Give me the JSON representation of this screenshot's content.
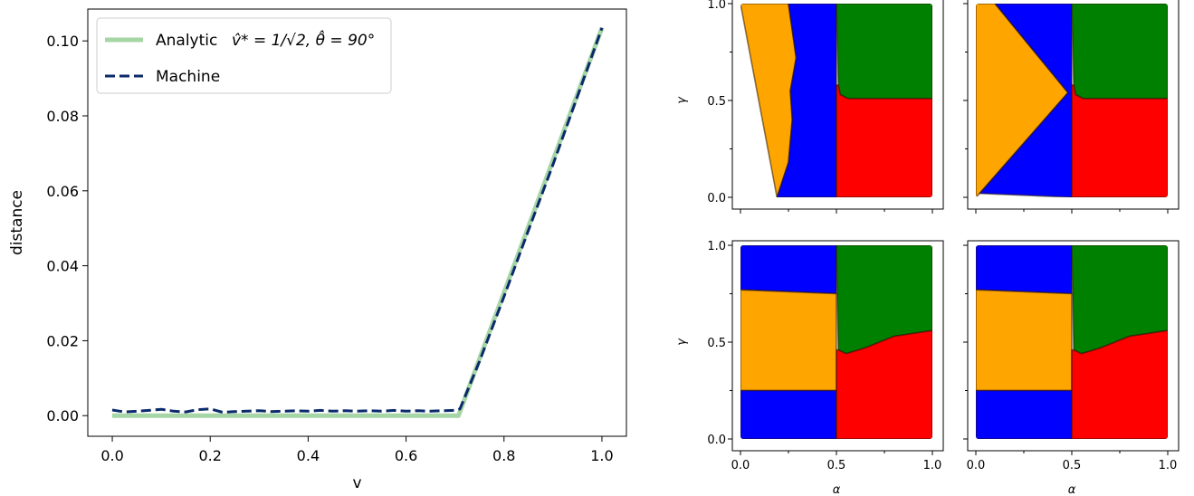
{
  "chart_data": [
    {
      "type": "line",
      "title": "",
      "xlabel": "v",
      "ylabel": "distance",
      "xlim": [
        -0.05,
        1.05
      ],
      "ylim": [
        -0.0055,
        0.1085
      ],
      "xticks": [
        0.0,
        0.2,
        0.4,
        0.6,
        0.8,
        1.0
      ],
      "xtick_labels": [
        "0.0",
        "0.2",
        "0.4",
        "0.6",
        "0.8",
        "1.0"
      ],
      "yticks": [
        0.0,
        0.02,
        0.04,
        0.06,
        0.08,
        0.1
      ],
      "ytick_labels": [
        "0.00",
        "0.02",
        "0.04",
        "0.06",
        "0.08",
        "0.10"
      ],
      "grid": false,
      "legend": "upper-left",
      "series": [
        {
          "name": "Analytic",
          "name_math": "v̂* = 1/√2, θ̂ = 90°",
          "color": "#a6d5a6",
          "style": "solid",
          "x": [
            0.0,
            0.707,
            1.0
          ],
          "y": [
            0.0,
            0.0,
            0.1035
          ]
        },
        {
          "name": "Machine",
          "color": "#0b2a6b",
          "style": "dashed",
          "x": [
            0.0,
            0.025,
            0.05,
            0.075,
            0.1,
            0.125,
            0.15,
            0.175,
            0.2,
            0.225,
            0.25,
            0.275,
            0.3,
            0.325,
            0.35,
            0.375,
            0.4,
            0.425,
            0.45,
            0.475,
            0.5,
            0.525,
            0.55,
            0.575,
            0.6,
            0.625,
            0.65,
            0.675,
            0.7,
            0.71,
            0.75,
            0.8,
            0.85,
            0.9,
            0.95,
            1.0
          ],
          "y": [
            0.0015,
            0.001,
            0.0012,
            0.0014,
            0.0017,
            0.0012,
            0.001,
            0.0016,
            0.0018,
            0.0009,
            0.0011,
            0.0012,
            0.0013,
            0.0011,
            0.0012,
            0.0013,
            0.0012,
            0.0014,
            0.0012,
            0.0013,
            0.0012,
            0.0013,
            0.0012,
            0.0014,
            0.0012,
            0.0013,
            0.0012,
            0.0013,
            0.0014,
            0.0018,
            0.0145,
            0.0318,
            0.0495,
            0.067,
            0.0852,
            0.1035
          ]
        }
      ]
    },
    {
      "type": "scatter",
      "xlabel": "",
      "ylabel": "γ",
      "xlim": [
        0,
        1
      ],
      "ylim": [
        0,
        1
      ],
      "yticks_labels": [
        "0.0",
        "0.5",
        "1.0"
      ],
      "regions": [
        {
          "color": "#ffa500",
          "polygon": [
            [
              0,
              1
            ],
            [
              0.25,
              1
            ],
            [
              0.29,
              0.72
            ],
            [
              0.26,
              0.55
            ],
            [
              0.27,
              0.4
            ],
            [
              0.25,
              0.18
            ],
            [
              0.19,
              0
            ]
          ]
        },
        {
          "color": "#0000ff",
          "polygon": [
            [
              0.25,
              1
            ],
            [
              0.5,
              1
            ],
            [
              0.5,
              0
            ],
            [
              0.19,
              0
            ],
            [
              0.25,
              0.18
            ],
            [
              0.27,
              0.4
            ],
            [
              0.26,
              0.55
            ],
            [
              0.29,
              0.72
            ]
          ]
        },
        {
          "color": "#008000",
          "polygon": [
            [
              0.5,
              1
            ],
            [
              1,
              1
            ],
            [
              1,
              0.51
            ],
            [
              0.56,
              0.51
            ],
            [
              0.52,
              0.53
            ],
            [
              0.51,
              0.58
            ]
          ]
        },
        {
          "color": "#ff0000",
          "polygon": [
            [
              0.5,
              0
            ],
            [
              1,
              0
            ],
            [
              1,
              0.51
            ],
            [
              0.56,
              0.51
            ],
            [
              0.52,
              0.53
            ],
            [
              0.51,
              0.58
            ],
            [
              0.5,
              0.58
            ]
          ]
        }
      ]
    },
    {
      "type": "scatter",
      "xlim": [
        0,
        1
      ],
      "ylim": [
        0,
        1
      ],
      "regions": [
        {
          "color": "#ffa500",
          "polygon": [
            [
              0,
              1
            ],
            [
              0.1,
              1
            ],
            [
              0.48,
              0.54
            ],
            [
              0.02,
              0.02
            ],
            [
              0,
              0
            ]
          ]
        },
        {
          "color": "#0000ff",
          "polygon": [
            [
              0.1,
              1
            ],
            [
              0.5,
              1
            ],
            [
              0.5,
              0
            ],
            [
              0.02,
              0.02
            ],
            [
              0.48,
              0.54
            ]
          ]
        },
        {
          "color": "#008000",
          "polygon": [
            [
              0.5,
              1
            ],
            [
              1,
              1
            ],
            [
              1,
              0.51
            ],
            [
              0.56,
              0.51
            ],
            [
              0.52,
              0.53
            ],
            [
              0.51,
              0.58
            ]
          ]
        },
        {
          "color": "#ff0000",
          "polygon": [
            [
              0.5,
              0
            ],
            [
              1,
              0
            ],
            [
              1,
              0.51
            ],
            [
              0.56,
              0.51
            ],
            [
              0.52,
              0.53
            ],
            [
              0.51,
              0.58
            ],
            [
              0.5,
              0.58
            ]
          ]
        }
      ]
    },
    {
      "type": "scatter",
      "xlabel": "α",
      "ylabel": "γ",
      "xlim": [
        0,
        1
      ],
      "ylim": [
        0,
        1
      ],
      "xticks_labels": [
        "0.0",
        "0.5",
        "1.0"
      ],
      "yticks_labels": [
        "0.0",
        "0.5",
        "1.0"
      ],
      "regions": [
        {
          "color": "#0000ff",
          "polygon": [
            [
              0,
              1
            ],
            [
              0.5,
              1
            ],
            [
              0.5,
              0.75
            ],
            [
              0,
              0.77
            ]
          ]
        },
        {
          "color": "#ffa500",
          "polygon": [
            [
              0,
              0.77
            ],
            [
              0.5,
              0.75
            ],
            [
              0.5,
              0.25
            ],
            [
              0,
              0.25
            ]
          ]
        },
        {
          "color": "#0000ff",
          "polygon": [
            [
              0,
              0.25
            ],
            [
              0.5,
              0.25
            ],
            [
              0.5,
              0
            ],
            [
              0,
              0
            ]
          ]
        },
        {
          "color": "#008000",
          "polygon": [
            [
              0.5,
              1
            ],
            [
              1,
              1
            ],
            [
              1,
              0.56
            ],
            [
              0.8,
              0.53
            ],
            [
              0.65,
              0.47
            ],
            [
              0.55,
              0.44
            ],
            [
              0.51,
              0.46
            ]
          ]
        },
        {
          "color": "#ff0000",
          "polygon": [
            [
              0.5,
              0
            ],
            [
              1,
              0
            ],
            [
              1,
              0.56
            ],
            [
              0.8,
              0.53
            ],
            [
              0.65,
              0.47
            ],
            [
              0.55,
              0.44
            ],
            [
              0.51,
              0.46
            ],
            [
              0.5,
              0.46
            ]
          ]
        }
      ]
    },
    {
      "type": "scatter",
      "xlabel": "α",
      "xlim": [
        0,
        1
      ],
      "ylim": [
        0,
        1
      ],
      "xticks_labels": [
        "0.0",
        "0.5",
        "1.0"
      ],
      "regions": [
        {
          "color": "#0000ff",
          "polygon": [
            [
              0,
              1
            ],
            [
              0.5,
              1
            ],
            [
              0.5,
              0.75
            ],
            [
              0,
              0.77
            ]
          ]
        },
        {
          "color": "#ffa500",
          "polygon": [
            [
              0,
              0.77
            ],
            [
              0.5,
              0.75
            ],
            [
              0.5,
              0.25
            ],
            [
              0,
              0.25
            ]
          ]
        },
        {
          "color": "#0000ff",
          "polygon": [
            [
              0,
              0.25
            ],
            [
              0.5,
              0.25
            ],
            [
              0.5,
              0
            ],
            [
              0,
              0
            ]
          ]
        },
        {
          "color": "#008000",
          "polygon": [
            [
              0.5,
              1
            ],
            [
              1,
              1
            ],
            [
              1,
              0.56
            ],
            [
              0.8,
              0.53
            ],
            [
              0.65,
              0.47
            ],
            [
              0.55,
              0.44
            ],
            [
              0.51,
              0.46
            ]
          ]
        },
        {
          "color": "#ff0000",
          "polygon": [
            [
              0.5,
              0
            ],
            [
              1,
              0
            ],
            [
              1,
              0.56
            ],
            [
              0.8,
              0.53
            ],
            [
              0.65,
              0.47
            ],
            [
              0.55,
              0.44
            ],
            [
              0.51,
              0.46
            ],
            [
              0.5,
              0.46
            ]
          ]
        }
      ]
    }
  ]
}
